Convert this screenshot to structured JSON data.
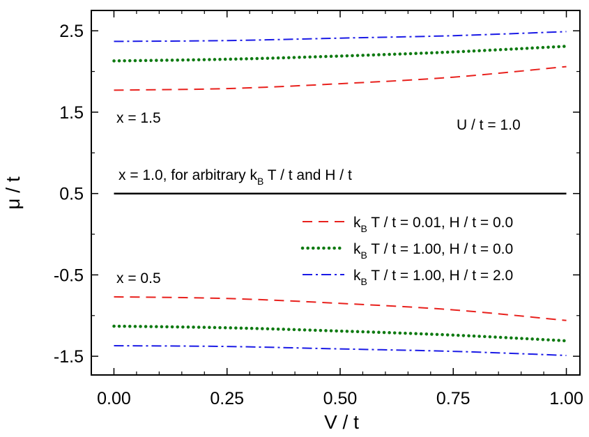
{
  "chart_data": {
    "type": "line",
    "xlabel": "V / t",
    "ylabel": "μ / t",
    "xlim": [
      -0.05,
      1.03
    ],
    "ylim": [
      -1.73,
      2.75
    ],
    "x_ticks": [
      "0.00",
      "0.25",
      "0.50",
      "0.75",
      "1.00"
    ],
    "y_ticks": [
      "-1.5",
      "-0.5",
      "0.5",
      "1.5",
      "2.5"
    ],
    "annotations": {
      "x15": "x = 1.5",
      "x05": "x = 0.5",
      "u_label": "U / t = 1.0",
      "x10_prefix": "x = 1.0, for arbitrary k",
      "x10_sub": "B",
      "x10_suffix": " T / t and H / t"
    },
    "legend_position": "right",
    "series": [
      {
        "name": "k_B T / t = 0.01,  H / t = 0.0",
        "legend": {
          "pre": "k",
          "sub": "B",
          "post": " T / t = 0.01,  H / t = 0.0"
        },
        "color": "#e8201c",
        "style": "dashed",
        "x": [
          0,
          0.25,
          0.5,
          0.75,
          1.0
        ],
        "upper": [
          1.77,
          1.79,
          1.85,
          1.93,
          2.06
        ],
        "lower": [
          -0.77,
          -0.79,
          -0.85,
          -0.93,
          -1.06
        ]
      },
      {
        "name": "k_B T / t = 1.00,  H / t = 0.0",
        "legend": {
          "pre": "k",
          "sub": "B",
          "post": " T / t = 1.00,  H / t = 0.0"
        },
        "color": "#0f7a12",
        "style": "dotted",
        "x": [
          0,
          0.25,
          0.5,
          0.75,
          1.0
        ],
        "upper": [
          2.13,
          2.15,
          2.19,
          2.24,
          2.31
        ],
        "lower": [
          -1.13,
          -1.15,
          -1.19,
          -1.24,
          -1.31
        ]
      },
      {
        "name": "k_B T / t = 1.00,  H / t = 2.0",
        "legend": {
          "pre": "k",
          "sub": "B",
          "post": " T / t = 1.00,  H / t = 2.0"
        },
        "color": "#1a1ae6",
        "style": "dashdot",
        "x": [
          0,
          0.25,
          0.5,
          0.75,
          1.0
        ],
        "upper": [
          2.37,
          2.38,
          2.41,
          2.44,
          2.49
        ],
        "lower": [
          -1.37,
          -1.38,
          -1.41,
          -1.44,
          -1.49
        ]
      },
      {
        "name": "x = 1.0",
        "color": "#000000",
        "style": "solid",
        "x": [
          0,
          1.0
        ],
        "values": [
          0.5,
          0.5
        ]
      }
    ]
  }
}
